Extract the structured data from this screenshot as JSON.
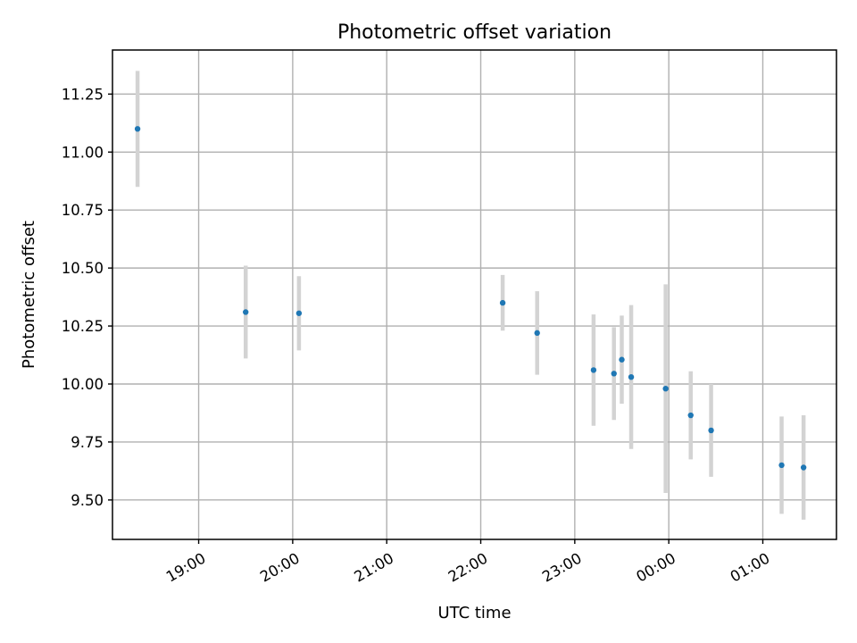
{
  "chart_data": {
    "type": "scatter",
    "title": "Photometric offset variation",
    "xlabel": "UTC time",
    "ylabel": "Photometric offset",
    "x_ticks": [
      "19:00",
      "20:00",
      "21:00",
      "22:00",
      "23:00",
      "00:00",
      "01:00"
    ],
    "y_ticks": [
      "9.50",
      "9.75",
      "10.00",
      "10.25",
      "10.50",
      "10.75",
      "11.00",
      "11.25"
    ],
    "ylim": [
      9.33,
      11.44
    ],
    "xlim": [
      "18:05",
      "01:47"
    ],
    "grid": true,
    "legend": "none",
    "marker_color": "#1f77b4",
    "errorbar_color": "#d3d3d3",
    "points": [
      {
        "x": "18:21",
        "y": 11.1,
        "err": 0.25
      },
      {
        "x": "19:30",
        "y": 10.31,
        "err": 0.2
      },
      {
        "x": "20:04",
        "y": 10.305,
        "err": 0.16
      },
      {
        "x": "22:14",
        "y": 10.35,
        "err": 0.12
      },
      {
        "x": "22:36",
        "y": 10.22,
        "err": 0.18
      },
      {
        "x": "23:12",
        "y": 10.06,
        "err": 0.24
      },
      {
        "x": "23:25",
        "y": 10.045,
        "err": 0.2
      },
      {
        "x": "23:30",
        "y": 10.105,
        "err": 0.19
      },
      {
        "x": "23:36",
        "y": 10.03,
        "err": 0.31
      },
      {
        "x": "23:58",
        "y": 9.98,
        "err": 0.45
      },
      {
        "x": "00:14",
        "y": 9.865,
        "err": 0.19
      },
      {
        "x": "00:27",
        "y": 9.8,
        "err": 0.2
      },
      {
        "x": "01:12",
        "y": 9.65,
        "err": 0.21
      },
      {
        "x": "01:26",
        "y": 9.64,
        "err": 0.225
      }
    ]
  }
}
